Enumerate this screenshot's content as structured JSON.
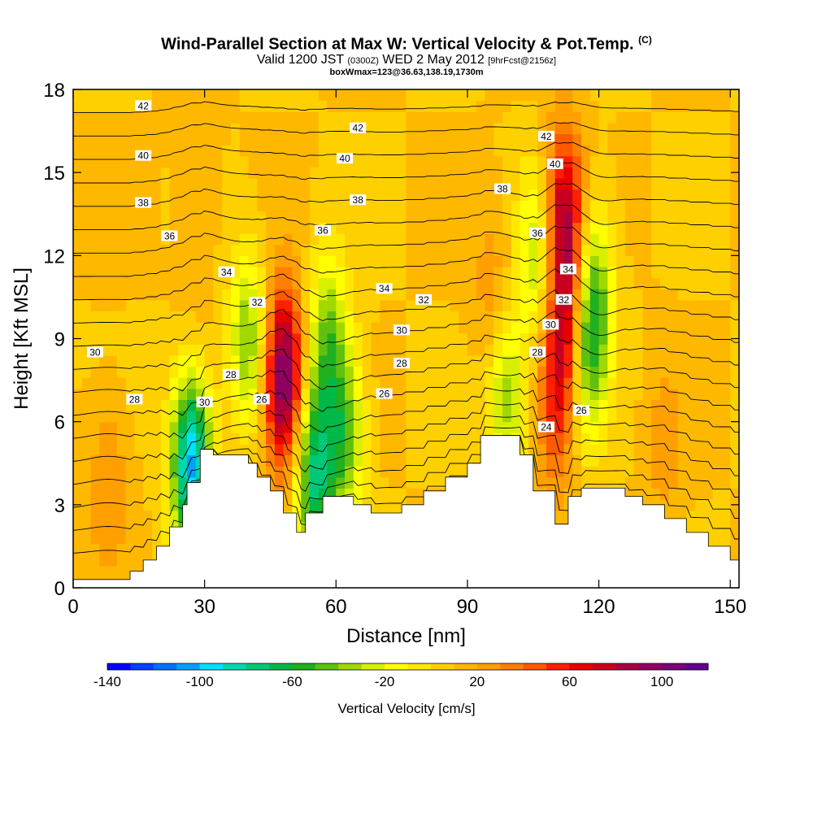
{
  "title": {
    "main": "Wind-Parallel Section at Max W: Vertical Velocity & Pot.Temp.",
    "copyright": "(C)",
    "valid_a": "Valid 1200 JST",
    "valid_b": "(0300Z)",
    "valid_c": "WED 2 May 2012",
    "valid_d": "[9hrFcst@2156z]",
    "sub": "boxWmax=123@36.63,138.19,1730m"
  },
  "colorbar": {
    "label": "Vertical Velocity [cm/s]",
    "tick_labels": [
      "-140",
      "-100",
      "-60",
      "-20",
      "20",
      "60",
      "100"
    ],
    "tick_values": [
      -140,
      -100,
      -60,
      -20,
      20,
      60,
      100
    ],
    "range": [
      -140,
      120
    ],
    "step": 10,
    "colors": [
      "#0000ff",
      "#0040ff",
      "#0070ff",
      "#00a0ff",
      "#00e0ff",
      "#00d8b0",
      "#00c878",
      "#00b848",
      "#20b020",
      "#60c010",
      "#a0d800",
      "#d8f000",
      "#ffff00",
      "#ffe800",
      "#ffd000",
      "#ffb800",
      "#ffa000",
      "#ff8000",
      "#ff5a00",
      "#ff2000",
      "#e80000",
      "#c80020",
      "#a80040",
      "#900060",
      "#780078",
      "#600090"
    ]
  },
  "chart_data": {
    "type": "heatmap",
    "title": "Wind-Parallel Section at Max W: Vertical Velocity & Pot.Temp.",
    "xlabel": "Distance [nm]",
    "ylabel": "Height [Kft MSL]",
    "xlim": [
      0,
      152
    ],
    "ylim": [
      0,
      18
    ],
    "xticks": [
      0,
      30,
      60,
      90,
      120,
      150
    ],
    "yticks": [
      0,
      3,
      6,
      9,
      12,
      15,
      18
    ],
    "background_value": 10,
    "updrafts": [
      {
        "x": 48,
        "y": 7.5,
        "value": 110
      },
      {
        "x": 112,
        "y": 13.5,
        "value": 80
      },
      {
        "x": 113,
        "y": 9.5,
        "value": 75
      },
      {
        "x": 110,
        "y": 6.5,
        "value": 45
      },
      {
        "x": 96,
        "y": 10.5,
        "value": 30
      },
      {
        "x": 8,
        "y": 4.0,
        "value": 30
      },
      {
        "x": 28,
        "y": 12.0,
        "value": 20
      },
      {
        "x": 28,
        "y": 16.0,
        "value": 20
      },
      {
        "x": 135,
        "y": 5.0,
        "value": 25
      }
    ],
    "downdrafts": [
      {
        "x": 27,
        "y": 4.5,
        "value": -105
      },
      {
        "x": 40,
        "y": 9.0,
        "value": -40
      },
      {
        "x": 55,
        "y": 4.0,
        "value": -70
      },
      {
        "x": 58,
        "y": 9.0,
        "value": -40
      },
      {
        "x": 62,
        "y": 5.5,
        "value": -45
      },
      {
        "x": 99,
        "y": 7.0,
        "value": -40
      },
      {
        "x": 117,
        "y": 8.5,
        "value": -50
      },
      {
        "x": 119,
        "y": 11.0,
        "value": -35
      },
      {
        "x": 106,
        "y": 12.0,
        "value": -30
      }
    ],
    "terrain": {
      "x": [
        0,
        13,
        13,
        16,
        16,
        19,
        19,
        22,
        22,
        25,
        25,
        26,
        26,
        29,
        29,
        32,
        32,
        40,
        40,
        42,
        42,
        45,
        45,
        48,
        48,
        51,
        51,
        53,
        53,
        57,
        57,
        64,
        64,
        68,
        68,
        75,
        75,
        80,
        80,
        85,
        85,
        90,
        90,
        93,
        93,
        102,
        102,
        105,
        105,
        110,
        110,
        113,
        113,
        116,
        116,
        120,
        120,
        126,
        126,
        130,
        130,
        135,
        135,
        140,
        140,
        145,
        145,
        150,
        150,
        152
      ],
      "y": [
        0.3,
        0.3,
        0.6,
        0.6,
        1.0,
        1.0,
        1.5,
        1.5,
        2.2,
        2.2,
        3.0,
        3.0,
        3.8,
        3.8,
        5.0,
        5.0,
        4.8,
        4.8,
        4.5,
        4.5,
        4.0,
        4.0,
        3.5,
        3.5,
        2.7,
        2.7,
        2.0,
        2.0,
        2.7,
        2.7,
        3.3,
        3.3,
        3.0,
        3.0,
        2.7,
        2.7,
        3.0,
        3.0,
        3.5,
        3.5,
        4.0,
        4.0,
        4.5,
        4.5,
        5.5,
        5.5,
        4.8,
        4.8,
        3.5,
        3.5,
        2.3,
        2.3,
        3.3,
        3.3,
        3.6,
        3.6,
        3.6,
        3.6,
        3.3,
        3.3,
        3.0,
        3.0,
        2.5,
        2.5,
        2.0,
        2.0,
        1.5,
        1.5,
        1.0,
        1.0
      ]
    },
    "isentrope_levels": [
      24,
      26,
      28,
      30,
      32,
      34,
      36,
      38,
      40,
      42
    ],
    "isentrope_labels": [
      {
        "text": "42",
        "x": 16,
        "y": 17.4
      },
      {
        "text": "42",
        "x": 65,
        "y": 16.6
      },
      {
        "text": "42",
        "x": 108,
        "y": 16.3
      },
      {
        "text": "40",
        "x": 16,
        "y": 15.6
      },
      {
        "text": "40",
        "x": 62,
        "y": 15.5
      },
      {
        "text": "40",
        "x": 110,
        "y": 15.3
      },
      {
        "text": "38",
        "x": 16,
        "y": 13.9
      },
      {
        "text": "38",
        "x": 65,
        "y": 14.0
      },
      {
        "text": "38",
        "x": 98,
        "y": 14.4
      },
      {
        "text": "36",
        "x": 22,
        "y": 12.7
      },
      {
        "text": "36",
        "x": 57,
        "y": 12.9
      },
      {
        "text": "36",
        "x": 106,
        "y": 12.8
      },
      {
        "text": "34",
        "x": 35,
        "y": 11.4
      },
      {
        "text": "34",
        "x": 71,
        "y": 10.8
      },
      {
        "text": "34",
        "x": 113,
        "y": 11.5
      },
      {
        "text": "32",
        "x": 42,
        "y": 10.3
      },
      {
        "text": "32",
        "x": 80,
        "y": 10.4
      },
      {
        "text": "32",
        "x": 112,
        "y": 10.4
      },
      {
        "text": "30",
        "x": 5,
        "y": 8.5
      },
      {
        "text": "30",
        "x": 30,
        "y": 6.7
      },
      {
        "text": "30",
        "x": 75,
        "y": 9.3
      },
      {
        "text": "30",
        "x": 109,
        "y": 9.5
      },
      {
        "text": "28",
        "x": 36,
        "y": 7.7
      },
      {
        "text": "28",
        "x": 75,
        "y": 8.1
      },
      {
        "text": "28",
        "x": 106,
        "y": 8.5
      },
      {
        "text": "28",
        "x": 14,
        "y": 6.8
      },
      {
        "text": "26",
        "x": 43,
        "y": 6.8
      },
      {
        "text": "26",
        "x": 71,
        "y": 7.0
      },
      {
        "text": "26",
        "x": 116,
        "y": 6.4
      },
      {
        "text": "24",
        "x": 108,
        "y": 5.8
      }
    ]
  }
}
